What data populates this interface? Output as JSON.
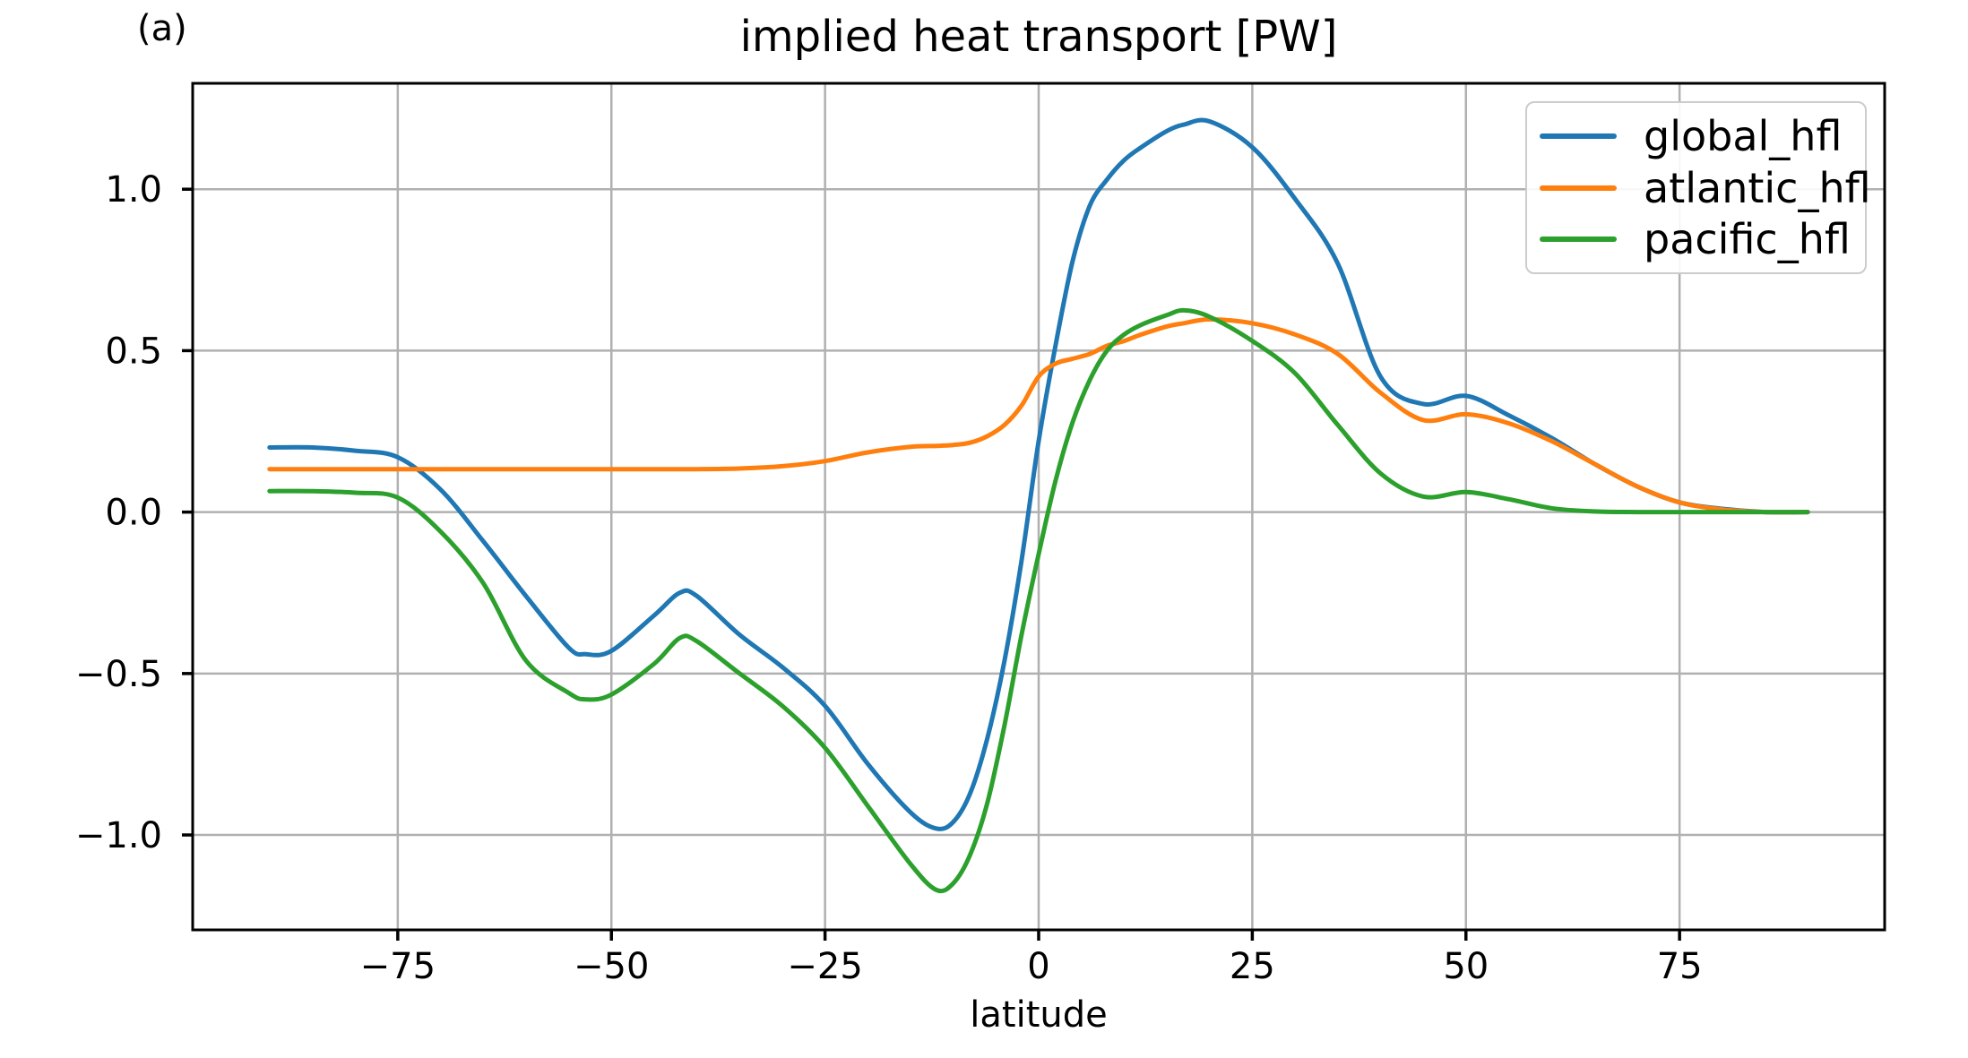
{
  "panel_label": "(a)",
  "chart_data": {
    "type": "line",
    "title": "implied heat transport [PW]",
    "xlabel": "latitude",
    "ylabel": "",
    "grid": true,
    "grid_color": "#b0b0b0",
    "legend_position": "upper right",
    "xlim": [
      -99,
      99
    ],
    "ylim": [
      -1.294,
      1.328
    ],
    "xticks": {
      "values": [
        -75,
        -50,
        -25,
        0,
        25,
        50,
        75
      ],
      "labels": [
        "−75",
        "−50",
        "−25",
        "0",
        "25",
        "50",
        "75"
      ]
    },
    "yticks": {
      "values": [
        1.0,
        0.5,
        0.0,
        -0.5,
        -1.0
      ],
      "labels": [
        "1.0",
        "0.5",
        "0.0",
        "−0.5",
        "−1.0"
      ]
    },
    "x": [
      -90,
      -85,
      -80,
      -75,
      -70,
      -65,
      -60,
      -55,
      -53,
      -50,
      -45,
      -42,
      -40,
      -35,
      -30,
      -25,
      -20,
      -15,
      -12,
      -10,
      -8,
      -6,
      -4,
      -2,
      0,
      2,
      4,
      6,
      8,
      10,
      12,
      15,
      17,
      20,
      25,
      30,
      35,
      40,
      45,
      50,
      55,
      60,
      65,
      70,
      75,
      80,
      85,
      90
    ],
    "series": [
      {
        "name": "global_hfl",
        "color": "#1f77b4",
        "values": [
          0.2,
          0.2,
          0.19,
          0.17,
          0.07,
          -0.09,
          -0.26,
          -0.42,
          -0.44,
          -0.43,
          -0.32,
          -0.25,
          -0.26,
          -0.38,
          -0.48,
          -0.6,
          -0.78,
          -0.93,
          -0.98,
          -0.96,
          -0.87,
          -0.7,
          -0.46,
          -0.15,
          0.22,
          0.52,
          0.78,
          0.95,
          1.03,
          1.09,
          1.13,
          1.18,
          1.2,
          1.21,
          1.13,
          0.97,
          0.77,
          0.42,
          0.335,
          0.36,
          0.3,
          0.23,
          0.15,
          0.08,
          0.03,
          0.01,
          0.0,
          0.0
        ]
      },
      {
        "name": "atlantic_hfl",
        "color": "#ff7f0e",
        "values": [
          0.133,
          0.133,
          0.133,
          0.133,
          0.133,
          0.133,
          0.133,
          0.133,
          0.133,
          0.133,
          0.133,
          0.133,
          0.133,
          0.135,
          0.142,
          0.158,
          0.185,
          0.202,
          0.205,
          0.208,
          0.215,
          0.235,
          0.27,
          0.33,
          0.42,
          0.46,
          0.475,
          0.49,
          0.515,
          0.53,
          0.55,
          0.575,
          0.585,
          0.597,
          0.585,
          0.55,
          0.49,
          0.37,
          0.285,
          0.303,
          0.275,
          0.22,
          0.15,
          0.08,
          0.03,
          0.008,
          0.0,
          0.0
        ]
      },
      {
        "name": "pacific_hfl",
        "color": "#2ca02c",
        "values": [
          0.065,
          0.065,
          0.06,
          0.045,
          -0.06,
          -0.22,
          -0.46,
          -0.56,
          -0.58,
          -0.565,
          -0.47,
          -0.39,
          -0.4,
          -0.5,
          -0.6,
          -0.73,
          -0.91,
          -1.09,
          -1.17,
          -1.15,
          -1.06,
          -0.9,
          -0.66,
          -0.38,
          -0.13,
          0.1,
          0.28,
          0.41,
          0.5,
          0.55,
          0.58,
          0.61,
          0.625,
          0.605,
          0.53,
          0.43,
          0.27,
          0.12,
          0.048,
          0.062,
          0.04,
          0.012,
          0.002,
          0.0,
          0.0,
          0.0,
          0.0,
          0.0
        ]
      }
    ]
  }
}
